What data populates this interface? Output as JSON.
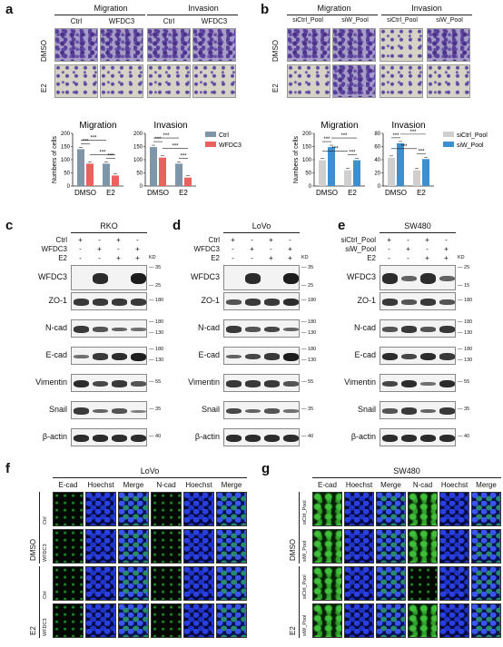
{
  "panels": {
    "a": {
      "label": "a",
      "groups": [
        "Migration",
        "Invasion"
      ],
      "cols": [
        "Ctrl",
        "WFDC3",
        "Ctrl",
        "WFDC3"
      ],
      "rows": [
        "DMSO",
        "E2"
      ]
    },
    "b": {
      "label": "b",
      "groups": [
        "Migration",
        "Invasion"
      ],
      "cols": [
        "siCtrl_Pool",
        "siW_Pool",
        "siCtrl_Pool",
        "siW_Pool"
      ],
      "rows": [
        "DMSO",
        "E2"
      ]
    },
    "c": {
      "label": "c",
      "cell": "RKO",
      "conditions": [
        {
          "name": "Ctrl",
          "marks": [
            "+",
            "-",
            "+",
            "-"
          ]
        },
        {
          "name": "WFDC3",
          "marks": [
            "-",
            "+",
            "-",
            "+"
          ]
        },
        {
          "name": "E2",
          "marks": [
            "-",
            "-",
            "+",
            "+"
          ]
        }
      ],
      "kd": "KD",
      "proteins": [
        "WFDC3",
        "ZO-1",
        "N-cad",
        "E-cad",
        "Vimentin",
        "Snail",
        "β-actin"
      ],
      "mw": [
        [
          "35",
          "25"
        ],
        [
          "180"
        ],
        [
          "180",
          "130"
        ],
        [
          "180",
          "130"
        ],
        [
          "55"
        ],
        [
          "35"
        ],
        [
          "40"
        ]
      ]
    },
    "d": {
      "label": "d",
      "cell": "LoVo",
      "conditions": [
        {
          "name": "Ctrl",
          "marks": [
            "+",
            "-",
            "+",
            "-"
          ]
        },
        {
          "name": "WFDC3",
          "marks": [
            "-",
            "+",
            "-",
            "+"
          ]
        },
        {
          "name": "E2",
          "marks": [
            "-",
            "-",
            "+",
            "+"
          ]
        }
      ],
      "kd": "KD",
      "proteins": [
        "WFDC3",
        "ZO-1",
        "N-cad",
        "E-cad",
        "Vimentin",
        "Snail",
        "β-actin"
      ],
      "mw": [
        [
          "35",
          "25"
        ],
        [
          "180"
        ],
        [
          "180",
          "130"
        ],
        [
          "180",
          "130"
        ],
        [
          "55"
        ],
        [
          "35"
        ],
        [
          "40"
        ]
      ]
    },
    "e": {
      "label": "e",
      "cell": "SW480",
      "conditions": [
        {
          "name": "siCtrl_Pool",
          "marks": [
            "+",
            "-",
            "+",
            "-"
          ]
        },
        {
          "name": "siW_Pool",
          "marks": [
            "-",
            "+",
            "-",
            "+"
          ]
        },
        {
          "name": "E2",
          "marks": [
            "-",
            "-",
            "+",
            "+"
          ]
        }
      ],
      "kd": "KD",
      "proteins": [
        "WFDC3",
        "ZO-1",
        "N-cad",
        "E-cad",
        "Vimentin",
        "Snail",
        "β-actin"
      ],
      "mw": [
        [
          "25",
          "15"
        ],
        [
          "180"
        ],
        [
          "180",
          "130"
        ],
        [
          "180",
          "130"
        ],
        [
          "55"
        ],
        [
          "35"
        ],
        [
          "40"
        ]
      ]
    },
    "f": {
      "label": "f",
      "cell": "LoVo",
      "cols": [
        "E-cad",
        "Hoechst",
        "Merge",
        "N-cad",
        "Hoechst",
        "Merge"
      ],
      "groups": [
        "DMSO",
        "E2"
      ],
      "rows": [
        "Ctrl",
        "WFDC3",
        "Ctrl",
        "WFDC3"
      ]
    },
    "g": {
      "label": "g",
      "cell": "SW480",
      "cols": [
        "E-cad",
        "Hoechst",
        "Merge",
        "N-cad",
        "Hoechst",
        "Merge"
      ],
      "groups": [
        "DMSO",
        "E2"
      ],
      "rows": [
        "siCtrl_Pool",
        "siW_Pool",
        "siCtrl_Pool",
        "siW_Pool"
      ]
    }
  },
  "chart_data": [
    {
      "type": "bar",
      "panel": "a-left",
      "title": "Migration",
      "categories": [
        "DMSO",
        "E2"
      ],
      "ylabel": "Numbers of cells",
      "ylim": [
        0,
        200
      ],
      "yticks": [
        "0",
        "50",
        "100",
        "150",
        "200"
      ],
      "series": [
        {
          "name": "Ctrl",
          "values": [
            140,
            85
          ]
        },
        {
          "name": "WFDC3",
          "values": [
            85,
            40
          ]
        }
      ],
      "sig": [
        "***",
        "***",
        "***",
        "***"
      ],
      "colors": [
        "#7f96a8",
        "#e8635e"
      ]
    },
    {
      "type": "bar",
      "panel": "a-right",
      "title": "Invasion",
      "categories": [
        "DMSO",
        "E2"
      ],
      "ylim": [
        0,
        200
      ],
      "yticks": [
        "0",
        "50",
        "100",
        "150",
        "200"
      ],
      "series": [
        {
          "name": "Ctrl",
          "values": [
            148,
            85
          ]
        },
        {
          "name": "WFDC3",
          "values": [
            108,
            32
          ]
        }
      ],
      "sig": [
        "***",
        "***",
        "***",
        "***"
      ],
      "legend": [
        "Ctrl",
        "WFDC3"
      ],
      "colors": [
        "#7f96a8",
        "#e8635e"
      ]
    },
    {
      "type": "bar",
      "panel": "b-left",
      "title": "Migration",
      "categories": [
        "DMSO",
        "E2"
      ],
      "ylabel": "Numbers of cells",
      "ylim": [
        0,
        200
      ],
      "yticks": [
        "0",
        "50",
        "100",
        "150",
        "200"
      ],
      "series": [
        {
          "name": "siCtrl_Pool",
          "values": [
            98,
            60
          ]
        },
        {
          "name": "siW_Pool",
          "values": [
            148,
            98
          ]
        }
      ],
      "sig": [
        "***",
        "***",
        "***",
        "***"
      ],
      "colors": [
        "#cfcfcf",
        "#3c8fd0"
      ]
    },
    {
      "type": "bar",
      "panel": "b-right",
      "title": "Invasion",
      "categories": [
        "DMSO",
        "E2"
      ],
      "ylim": [
        0,
        80
      ],
      "yticks": [
        "0",
        "20",
        "40",
        "60",
        "80"
      ],
      "series": [
        {
          "name": "siCtrl_Pool",
          "values": [
            43,
            24
          ]
        },
        {
          "name": "siW_Pool",
          "values": [
            65,
            41
          ]
        }
      ],
      "sig": [
        "***",
        "***",
        "***",
        "***"
      ],
      "legend": [
        "siCtrl_Pool",
        "siW_Pool"
      ],
      "colors": [
        "#cfcfcf",
        "#3c8fd0"
      ]
    }
  ]
}
